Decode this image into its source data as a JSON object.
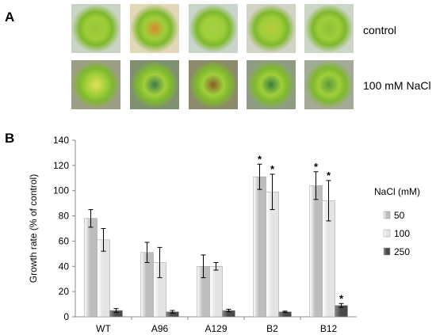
{
  "panels": {
    "a_letter": "A",
    "b_letter": "B"
  },
  "photos": {
    "row_labels": [
      "control",
      "100 mM NaCl"
    ],
    "rows": [
      {
        "label": "control",
        "count": 5
      },
      {
        "label": "100 mM NaCl",
        "count": 5
      }
    ]
  },
  "chart_data": {
    "type": "bar",
    "title": "",
    "xlabel": "",
    "ylabel": "Growth rate (% of control)",
    "ylim": [
      0,
      140
    ],
    "yticks": [
      "0",
      "20",
      "40",
      "60",
      "80",
      "100",
      "120",
      "140"
    ],
    "categories": [
      "WT",
      "A96",
      "A129",
      "B2",
      "B12"
    ],
    "legend_title": "NaCl (mM)",
    "legend_position": "right",
    "grid": false,
    "series": [
      {
        "name": "50",
        "color": "#bdbdbd",
        "values": [
          78,
          51,
          40,
          111,
          104
        ],
        "errors": [
          7,
          8,
          9,
          10,
          11
        ],
        "significant": [
          false,
          false,
          false,
          true,
          true
        ]
      },
      {
        "name": "100",
        "color": "#e4e4e4",
        "values": [
          61,
          43,
          40,
          99,
          92
        ],
        "errors": [
          9,
          12,
          3,
          14,
          16
        ],
        "significant": [
          false,
          false,
          false,
          true,
          true
        ]
      },
      {
        "name": "250",
        "color": "#4a4a4a",
        "values": [
          5,
          4,
          5,
          4,
          9
        ],
        "errors": [
          1.5,
          1,
          1,
          0.5,
          1.5
        ],
        "significant": [
          false,
          false,
          false,
          false,
          true
        ]
      }
    ],
    "significance_mark": "*"
  }
}
